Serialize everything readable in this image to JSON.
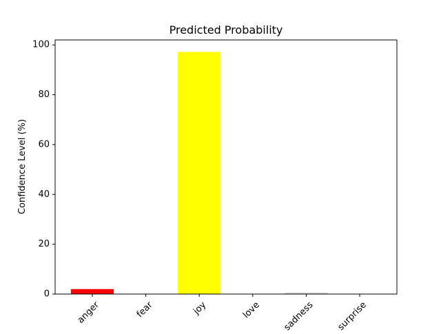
{
  "chart_data": {
    "type": "bar",
    "title": "Predicted Probability",
    "xlabel": "",
    "ylabel": "Confidence Level (%)",
    "categories": [
      "anger",
      "fear",
      "joy",
      "love",
      "sadness",
      "surprise"
    ],
    "values": [
      2.0,
      0.1,
      97.2,
      0.1,
      0.6,
      0.1
    ],
    "colors": [
      "#ff0000",
      "#000000",
      "#ffff00",
      "#ff69b4",
      "#d3d3d3",
      "#7b68ee"
    ],
    "ylim": [
      0,
      102
    ],
    "yticks": [
      0,
      20,
      40,
      60,
      80,
      100
    ],
    "grid": false,
    "xtick_rotation": 45
  }
}
